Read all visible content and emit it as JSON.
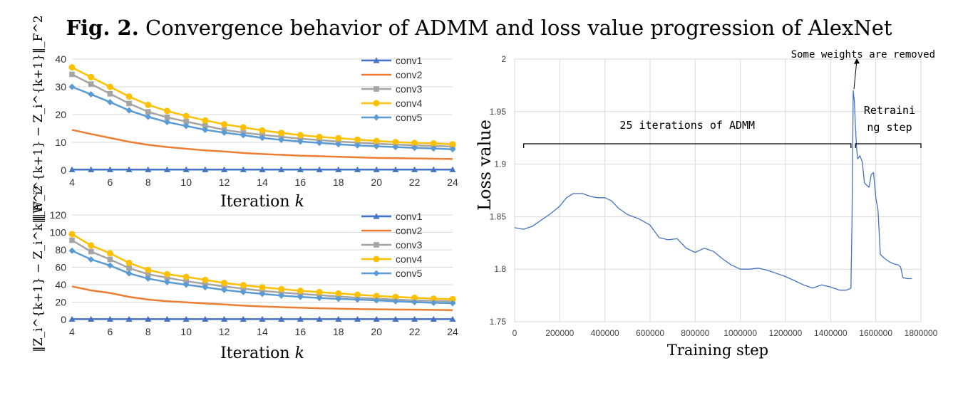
{
  "figure": {
    "label": "Fig. 2.",
    "caption": "Convergence behavior of ADMM and loss value progression of AlexNet"
  },
  "colors": {
    "conv1": "#4472C4",
    "conv2": "#ED7D31",
    "conv3": "#A5A5A5",
    "conv4": "#FFC000",
    "conv5": "#5B9BD5",
    "loss": "#4472C4",
    "grid": "#D9D9D9"
  },
  "chart_data": [
    {
      "id": "w-z-residual",
      "type": "line",
      "xlabel": "Iteration k",
      "ylabel": "‖W_i^{k+1} − Z_i^{k+1}‖_F^2",
      "x": [
        4,
        5,
        6,
        7,
        8,
        9,
        10,
        11,
        12,
        13,
        14,
        15,
        16,
        17,
        18,
        19,
        20,
        21,
        22,
        23,
        24
      ],
      "xticks": [
        4,
        6,
        8,
        10,
        12,
        14,
        16,
        18,
        20,
        22,
        24
      ],
      "xlim": [
        4,
        24
      ],
      "ylim": [
        0,
        40
      ],
      "yticks": [
        0,
        10,
        20,
        30,
        40
      ],
      "legend_position": "top-right",
      "grid": true,
      "series": [
        {
          "name": "conv1",
          "marker": "triangle",
          "values": [
            0.2,
            0.2,
            0.2,
            0.2,
            0.2,
            0.2,
            0.2,
            0.2,
            0.2,
            0.2,
            0.2,
            0.2,
            0.2,
            0.2,
            0.2,
            0.2,
            0.2,
            0.2,
            0.2,
            0.2,
            0.2
          ]
        },
        {
          "name": "conv2",
          "marker": "none",
          "values": [
            14.5,
            13,
            11.6,
            10.2,
            9.1,
            8.3,
            7.7,
            7.1,
            6.7,
            6.2,
            5.8,
            5.5,
            5.2,
            5,
            4.8,
            4.6,
            4.4,
            4.3,
            4.2,
            4.1,
            4.0
          ]
        },
        {
          "name": "conv3",
          "marker": "square",
          "values": [
            34.5,
            31,
            27.5,
            24,
            21,
            19,
            17.5,
            16,
            14.5,
            13.5,
            12.7,
            12,
            11.3,
            10.8,
            10.3,
            9.9,
            9.5,
            9.2,
            8.9,
            8.7,
            8.5
          ]
        },
        {
          "name": "conv4",
          "marker": "circle",
          "values": [
            37,
            33.5,
            30,
            26.5,
            23.5,
            21.3,
            19.5,
            17.9,
            16.5,
            15.4,
            14.3,
            13.4,
            12.6,
            12,
            11.5,
            11,
            10.5,
            10.1,
            9.8,
            9.6,
            9.3
          ]
        },
        {
          "name": "conv5",
          "marker": "diamond",
          "values": [
            30,
            27.3,
            24.5,
            21.5,
            19.2,
            17.3,
            15.9,
            14.5,
            13.5,
            12.6,
            11.6,
            10.9,
            10.3,
            9.8,
            9.3,
            8.9,
            8.6,
            8.3,
            8.0,
            7.8,
            7.5
          ]
        }
      ]
    },
    {
      "id": "z-change",
      "type": "line",
      "xlabel": "Iteration k",
      "ylabel": "‖Z_i^{k+1} − Z_i^k‖_F^2",
      "x": [
        4,
        5,
        6,
        7,
        8,
        9,
        10,
        11,
        12,
        13,
        14,
        15,
        16,
        17,
        18,
        19,
        20,
        21,
        22,
        23,
        24
      ],
      "xticks": [
        4,
        6,
        8,
        10,
        12,
        14,
        16,
        18,
        20,
        22,
        24
      ],
      "xlim": [
        4,
        24
      ],
      "ylim": [
        0,
        120
      ],
      "yticks": [
        0,
        20,
        40,
        60,
        80,
        100,
        120
      ],
      "legend_position": "top-right",
      "grid": true,
      "series": [
        {
          "name": "conv1",
          "marker": "triangle",
          "values": [
            0.5,
            0.5,
            0.5,
            0.5,
            0.5,
            0.5,
            0.5,
            0.5,
            0.5,
            0.5,
            0.5,
            0.5,
            0.5,
            0.5,
            0.5,
            0.5,
            0.5,
            0.5,
            0.5,
            0.5,
            0.5
          ]
        },
        {
          "name": "conv2",
          "marker": "none",
          "values": [
            38,
            33.5,
            30.5,
            26,
            23,
            21,
            19.8,
            18.5,
            17.3,
            16,
            15,
            14.3,
            13.6,
            13,
            12.5,
            12,
            11.7,
            11.5,
            11.3,
            11.1,
            10.8
          ]
        },
        {
          "name": "conv3",
          "marker": "square",
          "values": [
            91,
            78,
            69,
            59,
            52,
            48,
            44,
            41,
            38,
            35.5,
            33,
            31,
            29.5,
            28,
            26.5,
            25,
            24,
            23,
            22,
            21.5,
            21
          ]
        },
        {
          "name": "conv4",
          "marker": "circle",
          "values": [
            98,
            85,
            76,
            65,
            57,
            52,
            49,
            45.5,
            42,
            39.5,
            37,
            35,
            33,
            31.5,
            30,
            28.5,
            27,
            26,
            25,
            24,
            23.5
          ]
        },
        {
          "name": "conv5",
          "marker": "diamond",
          "values": [
            79,
            69,
            62,
            53,
            47,
            43,
            40,
            37,
            34,
            31.5,
            29.5,
            27.5,
            26,
            24.8,
            23.8,
            23,
            22,
            21,
            20,
            19.3,
            18.8
          ]
        }
      ]
    },
    {
      "id": "loss",
      "type": "line",
      "xlabel": "Training step",
      "ylabel": "Loss value",
      "xlim": [
        0,
        1800000
      ],
      "xticks": [
        0,
        200000,
        400000,
        600000,
        800000,
        1000000,
        1200000,
        1400000,
        1600000,
        1800000
      ],
      "ylim": [
        1.75,
        2
      ],
      "yticks": [
        1.75,
        1.8,
        1.85,
        1.9,
        1.95,
        2
      ],
      "ytick_labels": [
        "1.75",
        "1.8",
        "1.85",
        "1.9",
        "1.95",
        "2"
      ],
      "grid": true,
      "series": [
        {
          "name": "",
          "x": [
            0,
            40000,
            80000,
            120000,
            160000,
            200000,
            230000,
            260000,
            300000,
            340000,
            370000,
            400000,
            430000,
            460000,
            500000,
            550000,
            600000,
            640000,
            680000,
            720000,
            760000,
            800000,
            840000,
            880000,
            920000,
            960000,
            1000000,
            1040000,
            1080000,
            1120000,
            1160000,
            1200000,
            1240000,
            1280000,
            1320000,
            1360000,
            1400000,
            1440000,
            1470000,
            1490000,
            1495000,
            1500000,
            1505000,
            1510000,
            1515000,
            1520000,
            1530000,
            1540000,
            1550000,
            1560000,
            1570000,
            1580000,
            1590000,
            1600000,
            1610000,
            1620000,
            1640000,
            1660000,
            1680000,
            1700000,
            1710000,
            1720000,
            1740000,
            1760000
          ],
          "y": [
            1.8395,
            1.838,
            1.841,
            1.847,
            1.853,
            1.86,
            1.868,
            1.872,
            1.872,
            1.869,
            1.868,
            1.868,
            1.865,
            1.858,
            1.852,
            1.848,
            1.842,
            1.83,
            1.828,
            1.829,
            1.82,
            1.816,
            1.82,
            1.817,
            1.81,
            1.804,
            1.8,
            1.8,
            1.801,
            1.799,
            1.796,
            1.793,
            1.789,
            1.785,
            1.782,
            1.785,
            1.783,
            1.78,
            1.78,
            1.782,
            1.85,
            1.97,
            1.96,
            1.935,
            1.915,
            1.905,
            1.908,
            1.902,
            1.882,
            1.88,
            1.878,
            1.89,
            1.892,
            1.868,
            1.856,
            1.814,
            1.81,
            1.807,
            1.805,
            1.804,
            1.802,
            1.792,
            1.791,
            1.791
          ]
        }
      ],
      "annotations": [
        {
          "text": "Some weights are removed",
          "x": 1500000,
          "y": 1.97
        },
        {
          "text": "25 iterations of ADMM",
          "x_start": 40000,
          "x_end": 1490000
        },
        {
          "text": "Retraining step",
          "lines": [
            "Retraini",
            "ng step"
          ],
          "x_start": 1510000,
          "x_end": 1800000
        }
      ]
    }
  ]
}
